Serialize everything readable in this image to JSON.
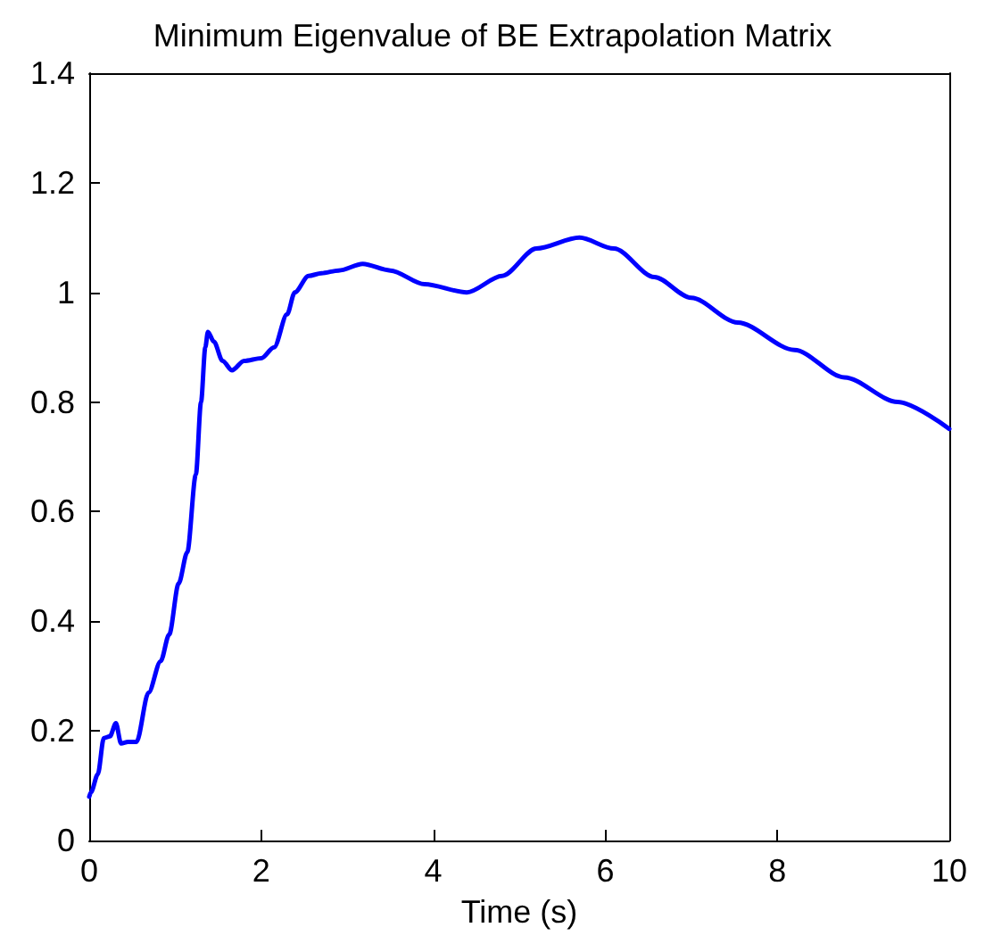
{
  "chart_data": {
    "type": "line",
    "title": "Minimum Eigenvalue of BE Extrapolation Matrix",
    "xlabel": "Time (s)",
    "x": [
      0,
      0.02,
      0.1,
      0.17,
      0.24,
      0.31,
      0.37,
      0.45,
      0.55,
      0.69,
      0.83,
      0.93,
      1.04,
      1.14,
      1.24,
      1.3,
      1.35,
      1.38,
      1.45,
      1.55,
      1.66,
      1.8,
      2.0,
      2.15,
      2.3,
      2.39,
      2.55,
      2.7,
      2.9,
      3.18,
      3.5,
      3.9,
      4.39,
      4.8,
      5.2,
      5.7,
      6.1,
      6.57,
      7.0,
      7.54,
      8.2,
      8.78,
      9.4,
      10
    ],
    "series": [
      {
        "color": "#0000ff",
        "values": [
          0.08,
          0.088,
          0.121,
          0.187,
          0.19,
          0.214,
          0.177,
          0.18,
          0.18,
          0.27,
          0.327,
          0.376,
          0.469,
          0.526,
          0.668,
          0.8,
          0.9,
          0.928,
          0.91,
          0.875,
          0.858,
          0.875,
          0.88,
          0.9,
          0.96,
          1.0,
          1.03,
          1.035,
          1.04,
          1.052,
          1.04,
          1.015,
          1.0,
          1.03,
          1.08,
          1.1,
          1.08,
          1.028,
          0.99,
          0.945,
          0.895,
          0.845,
          0.8,
          0.751
        ]
      }
    ],
    "xlim": [
      0,
      10
    ],
    "xticks": [
      0,
      2,
      4,
      6,
      8,
      10
    ],
    "ylim": [
      0,
      1.4
    ],
    "yticks": [
      0,
      0.2,
      0.4,
      0.6,
      0.8,
      1,
      1.2,
      1.4
    ],
    "grid": false,
    "marker": "none",
    "line_style": "solid"
  }
}
